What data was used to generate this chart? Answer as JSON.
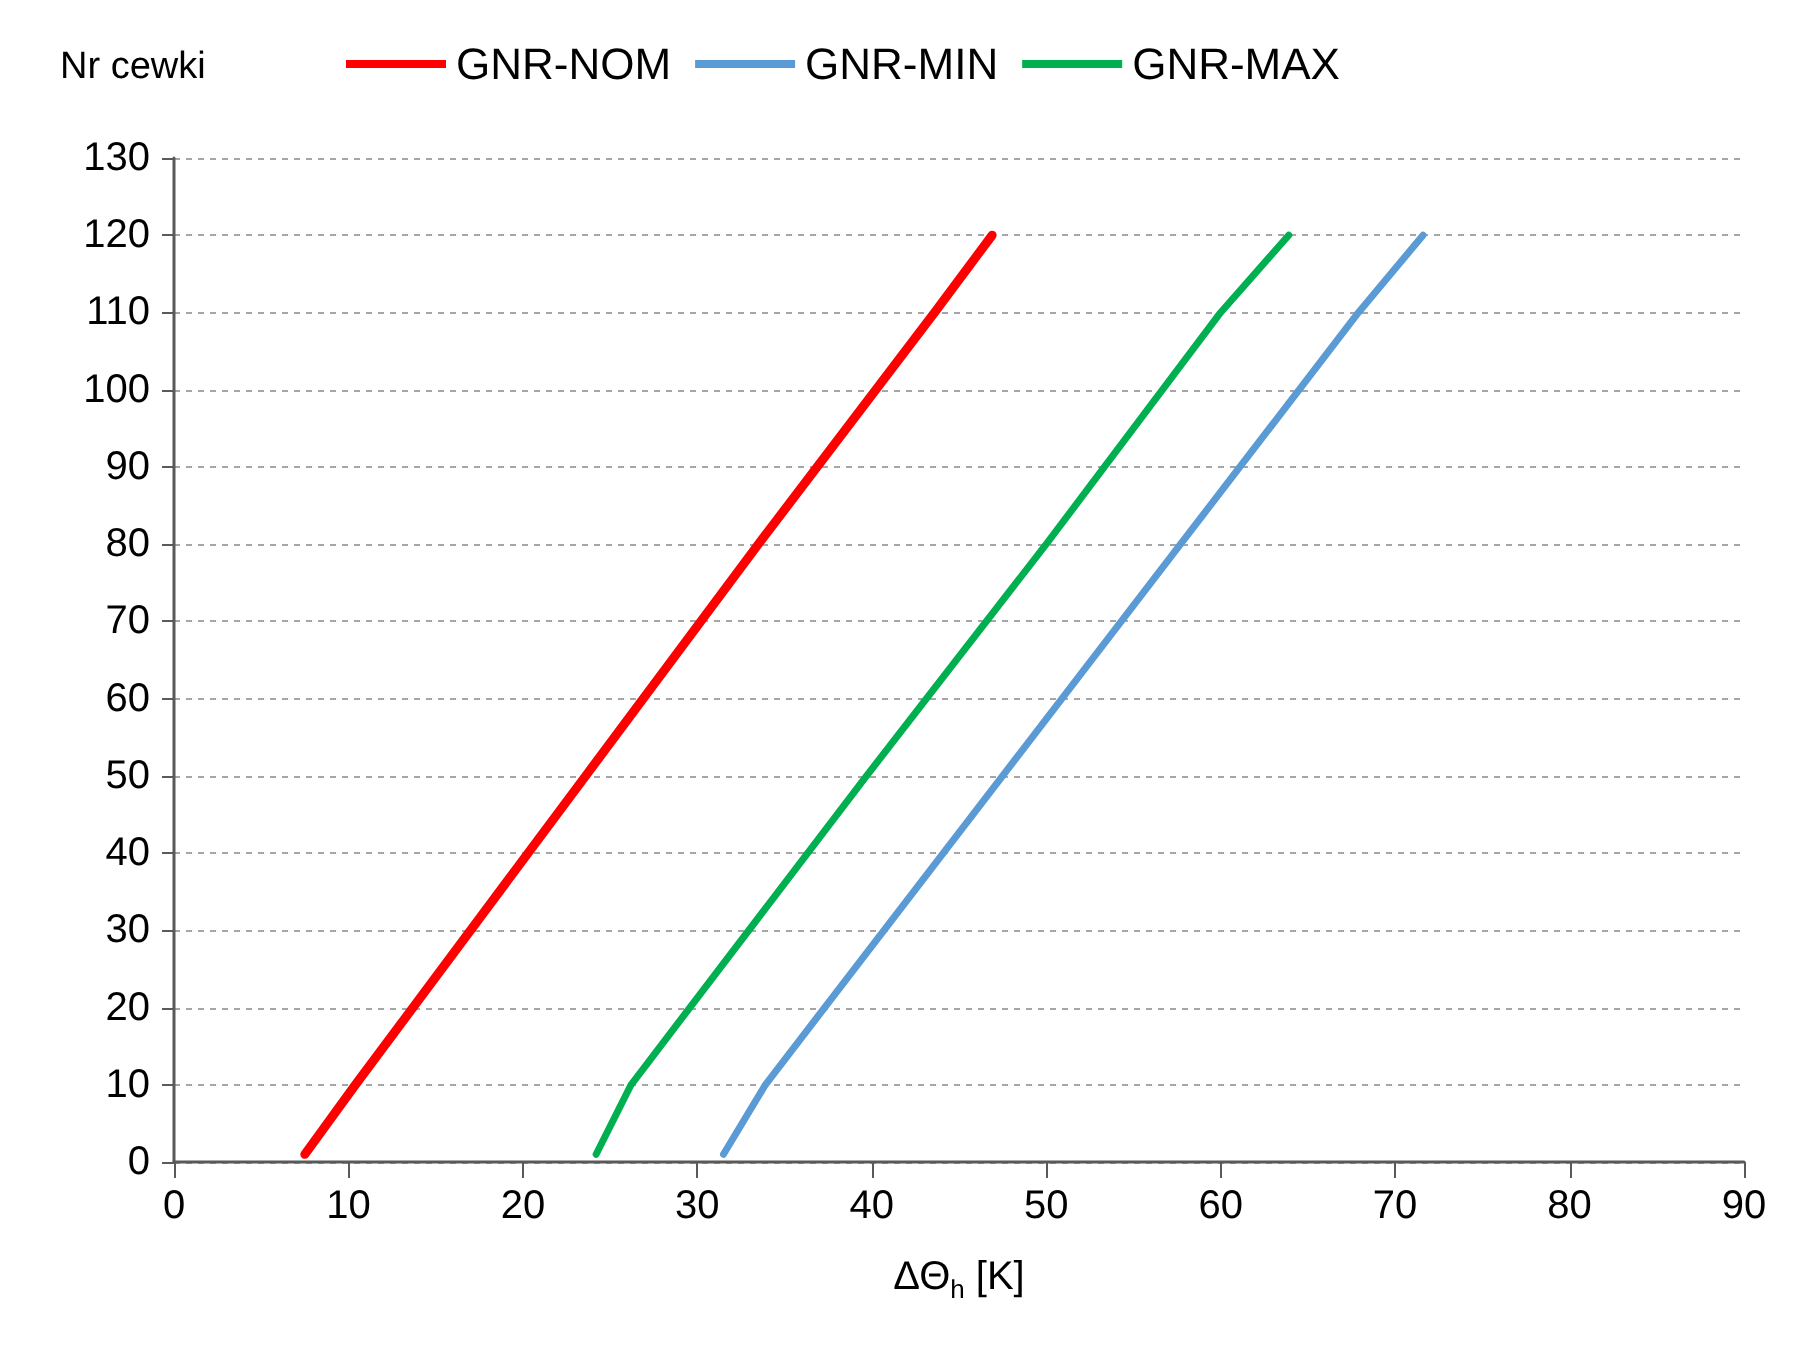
{
  "chart_data": {
    "type": "line",
    "xlabel": "ΔΘ$_{h}$ [K]",
    "ylabel": "Nr cewki",
    "xlim": [
      0,
      90
    ],
    "xticks": [
      0,
      10,
      20,
      30,
      40,
      50,
      60,
      70,
      80,
      90
    ],
    "ylim": [
      0,
      130
    ],
    "yticks": [
      0,
      10,
      20,
      30,
      40,
      50,
      60,
      70,
      80,
      90,
      100,
      110,
      120,
      130
    ],
    "grid": "y",
    "legend": "top",
    "marker": "none",
    "line_style": "solid",
    "series": [
      {
        "name": "GNR-NOM",
        "color": "#ff0000",
        "x": [
          7.5,
          10.4,
          23.6,
          33.5,
          43.6,
          46.9
        ],
        "values": [
          1,
          10,
          50,
          80,
          110,
          120
        ]
      },
      {
        "name": "GNR-MIN",
        "color": "#5b9bd5",
        "x": [
          31.5,
          33.9,
          47.5,
          57.7,
          67.9,
          71.6
        ],
        "values": [
          1,
          10,
          50,
          80,
          110,
          120
        ]
      },
      {
        "name": "GNR-MAX",
        "color": "#00b050",
        "x": [
          24.2,
          26.2,
          39.7,
          50.0,
          60.0,
          63.9
        ],
        "values": [
          1,
          10,
          50,
          80,
          110,
          120
        ]
      }
    ]
  }
}
